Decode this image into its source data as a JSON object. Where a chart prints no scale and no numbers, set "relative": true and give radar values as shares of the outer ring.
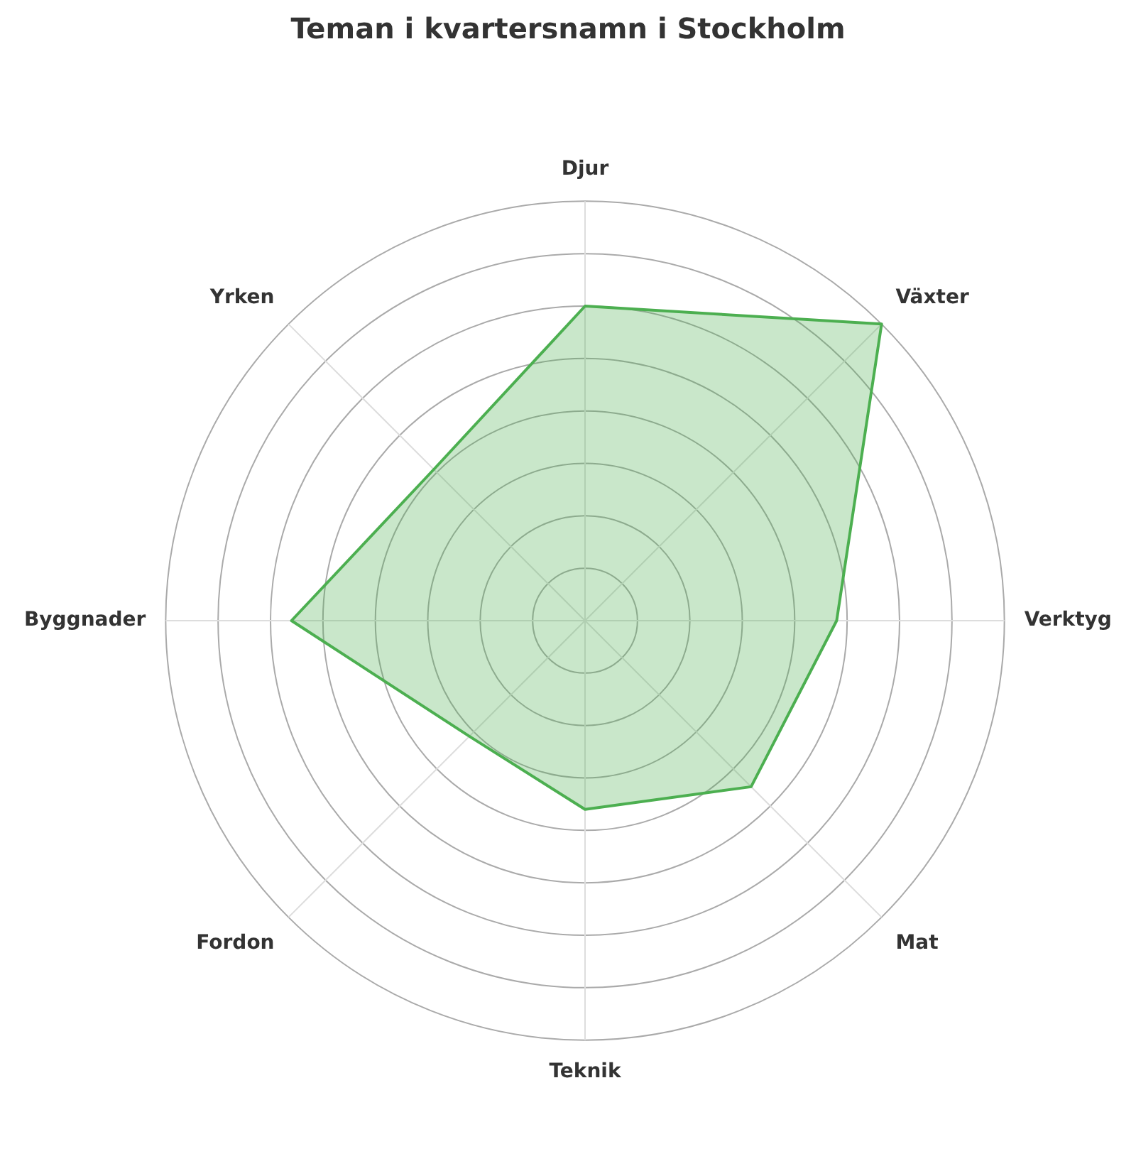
{
  "chart_data": {
    "type": "radar",
    "title": "Teman i kvartersnamn i Stockholm",
    "relative": true,
    "categories": [
      "Djur",
      "Växter",
      "Verktyg",
      "Mat",
      "Teknik",
      "Fordon",
      "Byggnader",
      "Yrken"
    ],
    "series": [
      {
        "color": "#4caf50",
        "values": [
          0.75,
          1.0,
          0.6,
          0.56,
          0.45,
          0.39,
          0.7,
          0.51
        ]
      }
    ],
    "grid": true,
    "legend": false,
    "marker": "none"
  }
}
